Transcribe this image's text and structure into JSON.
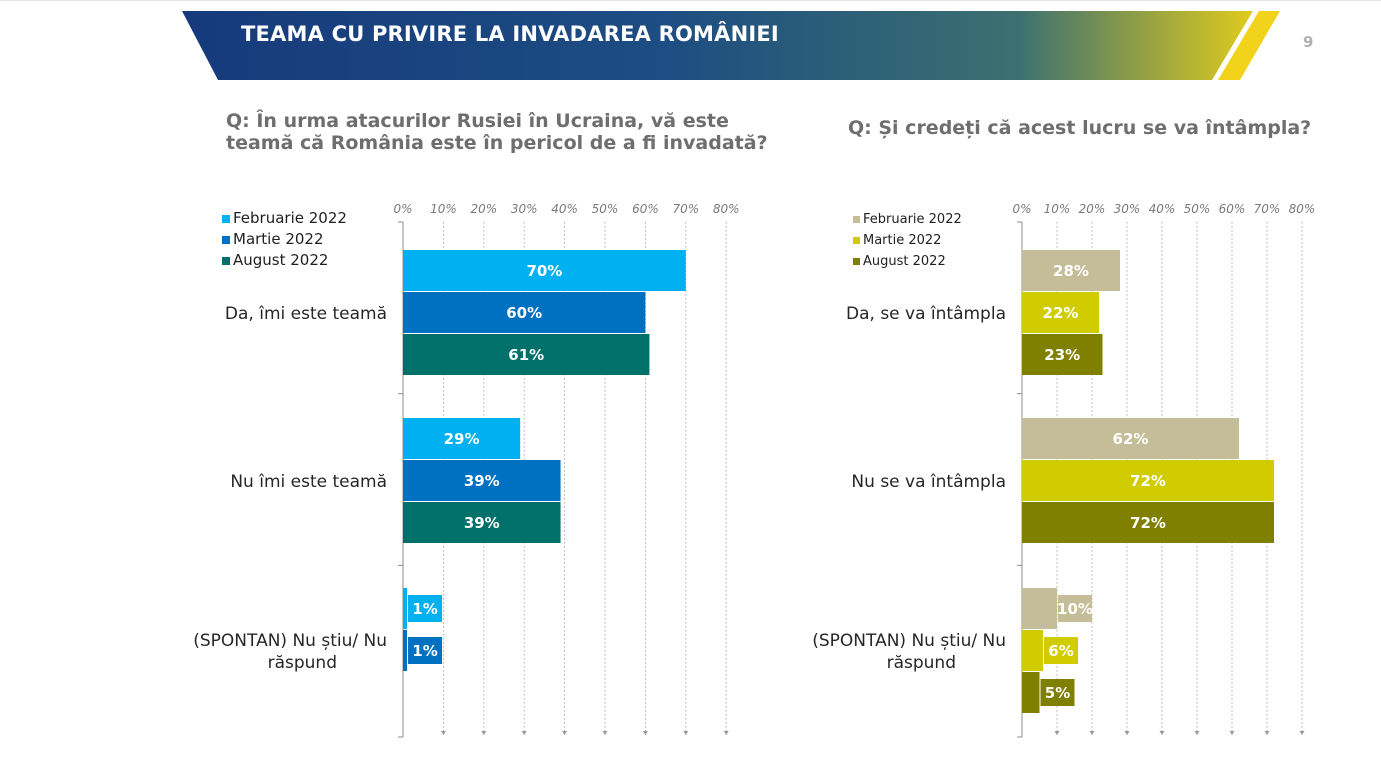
{
  "slide": {
    "title": "TEAMA CU PRIVIRE LA INVADAREA ROMÂNIEI",
    "page_number": "9",
    "colors": {
      "band_dark": "#163a7c",
      "band_mid": "#2a5f7a",
      "band_accent": "#e6cf1a"
    }
  },
  "chart_data": [
    {
      "type": "bar",
      "orientation": "horizontal",
      "title": "Q: În urma atacurilor Rusiei în Ucraina, vă este teamă că România este în pericol de a fi invadată?",
      "xlim": [
        0,
        80
      ],
      "tick_labels": [
        "0%",
        "10%",
        "20%",
        "30%",
        "40%",
        "50%",
        "60%",
        "70%",
        "80%"
      ],
      "legend_position": "top-left",
      "categories": [
        "Da, îmi este teamă",
        "Nu îmi este teamă",
        "(SPONTAN) Nu știu/ Nu răspund"
      ],
      "series": [
        {
          "name": "Februarie 2022",
          "color": "#00b0f0",
          "values": [
            70,
            29,
            1
          ],
          "labels": [
            "70%",
            "29%",
            "1%"
          ]
        },
        {
          "name": "Martie 2022",
          "color": "#0070c0",
          "values": [
            60,
            39,
            1
          ],
          "labels": [
            "60%",
            "39%",
            "1%"
          ]
        },
        {
          "name": "August 2022",
          "color": "#00706b",
          "values": [
            61,
            39,
            0
          ],
          "labels": [
            "61%",
            "39%",
            ""
          ]
        }
      ]
    },
    {
      "type": "bar",
      "orientation": "horizontal",
      "title": "Q: Și credeți că acest lucru se va întâmpla?",
      "xlim": [
        0,
        80
      ],
      "tick_labels": [
        "0%",
        "10%",
        "20%",
        "30%",
        "40%",
        "50%",
        "60%",
        "70%",
        "80%"
      ],
      "legend_position": "top-left",
      "categories": [
        "Da, se va întâmpla",
        "Nu se va întâmpla",
        "(SPONTAN) Nu știu/ Nu răspund"
      ],
      "series": [
        {
          "name": "Februarie 2022",
          "color": "#c4bd97",
          "values": [
            28,
            62,
            10
          ],
          "labels": [
            "28%",
            "62%",
            "10%"
          ]
        },
        {
          "name": "Martie 2022",
          "color": "#d1cc00",
          "values": [
            22,
            72,
            6
          ],
          "labels": [
            "22%",
            "72%",
            "6%"
          ]
        },
        {
          "name": "August 2022",
          "color": "#7f7f00",
          "values": [
            23,
            72,
            5
          ],
          "labels": [
            "23%",
            "72%",
            "5%"
          ]
        }
      ]
    }
  ]
}
